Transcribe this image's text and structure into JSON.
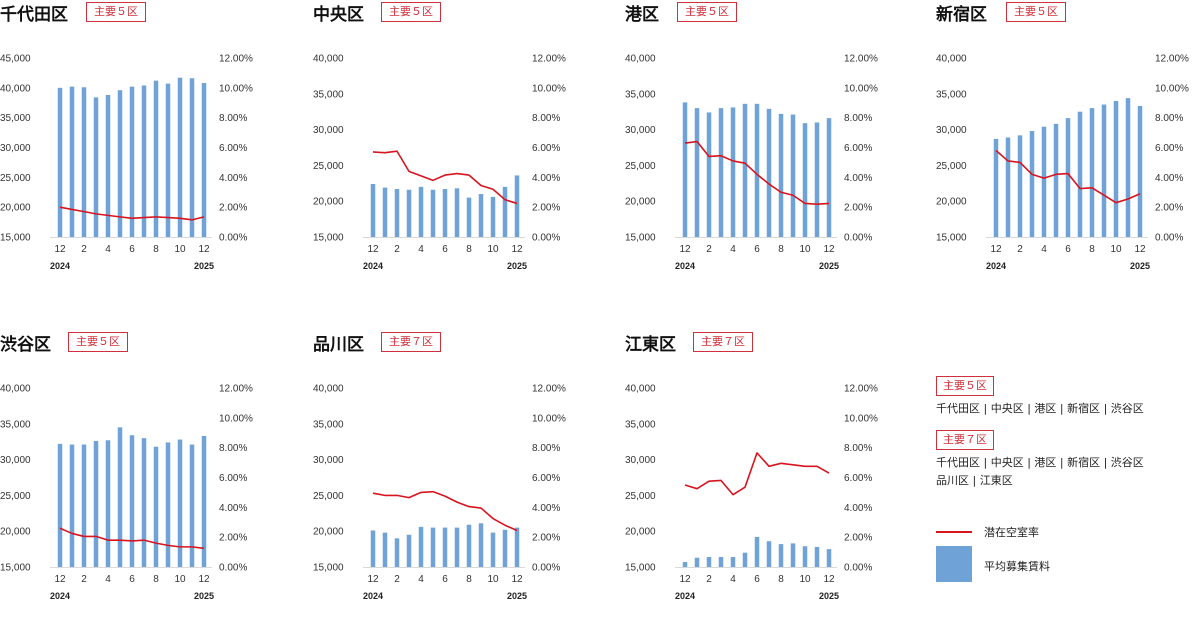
{
  "chart_data": [
    {
      "type": "bar",
      "title": "千代田区",
      "badge": "主要５区",
      "x": [
        "12",
        "1",
        "2",
        "3",
        "4",
        "5",
        "6",
        "7",
        "8",
        "9",
        "10",
        "11",
        "12"
      ],
      "xtick_labels": [
        "12",
        "2",
        "4",
        "6",
        "8",
        "10",
        "12"
      ],
      "year_start": "2024",
      "year_end": "2025",
      "ylim": [
        15000,
        45000
      ],
      "y_ticks": [
        "15,000",
        "20,000",
        "25,000",
        "30,000",
        "35,000",
        "40,000",
        "45,000"
      ],
      "y2lim": [
        0,
        12
      ],
      "y2_ticks": [
        "0.00%",
        "2.00%",
        "4.00%",
        "6.00%",
        "8.00%",
        "10.00%",
        "12.00%"
      ],
      "series": [
        {
          "name": "平均募集賃料",
          "kind": "bar",
          "values": [
            40000,
            40200,
            40100,
            38400,
            38800,
            39600,
            40200,
            40400,
            41200,
            40700,
            41700,
            41600,
            40800
          ]
        },
        {
          "name": "潜在空室率",
          "kind": "line",
          "values": [
            2.0,
            1.85,
            1.7,
            1.55,
            1.45,
            1.35,
            1.25,
            1.3,
            1.35,
            1.3,
            1.25,
            1.15,
            1.35
          ]
        }
      ]
    },
    {
      "type": "bar",
      "title": "中央区",
      "badge": "主要５区",
      "x": [
        "12",
        "1",
        "2",
        "3",
        "4",
        "5",
        "6",
        "7",
        "8",
        "9",
        "10",
        "11",
        "12"
      ],
      "xtick_labels": [
        "12",
        "2",
        "4",
        "6",
        "8",
        "10",
        "12"
      ],
      "year_start": "2024",
      "year_end": "2025",
      "ylim": [
        15000,
        40000
      ],
      "y_ticks": [
        "15,000",
        "20,000",
        "25,000",
        "30,000",
        "35,000",
        "40,000"
      ],
      "y2lim": [
        0,
        12
      ],
      "y2_ticks": [
        "0.00%",
        "2.00%",
        "4.00%",
        "6.00%",
        "8.00%",
        "10.00%",
        "12.00%"
      ],
      "series": [
        {
          "name": "平均募集賃料",
          "kind": "bar",
          "values": [
            22400,
            21900,
            21700,
            21600,
            22000,
            21600,
            21700,
            21800,
            20500,
            21000,
            20600,
            22000,
            23600
          ]
        },
        {
          "name": "潜在空室率",
          "kind": "line",
          "values": [
            5.7,
            5.65,
            5.75,
            4.4,
            4.1,
            3.8,
            4.15,
            4.25,
            4.15,
            3.45,
            3.2,
            2.5,
            2.25
          ]
        }
      ]
    },
    {
      "type": "bar",
      "title": "港区",
      "badge": "主要５区",
      "x": [
        "12",
        "1",
        "2",
        "3",
        "4",
        "5",
        "6",
        "7",
        "8",
        "9",
        "10",
        "11",
        "12"
      ],
      "xtick_labels": [
        "12",
        "2",
        "4",
        "6",
        "8",
        "10",
        "12"
      ],
      "year_start": "2024",
      "year_end": "2025",
      "ylim": [
        15000,
        40000
      ],
      "y_ticks": [
        "15,000",
        "20,000",
        "25,000",
        "30,000",
        "35,000",
        "40,000"
      ],
      "y2lim": [
        0,
        12
      ],
      "y2_ticks": [
        "0.00%",
        "2.00%",
        "4.00%",
        "6.00%",
        "8.00%",
        "10.00%",
        "12.00%"
      ],
      "series": [
        {
          "name": "平均募集賃料",
          "kind": "bar",
          "values": [
            33800,
            33000,
            32400,
            33000,
            33100,
            33600,
            33600,
            32900,
            32200,
            32100,
            30900,
            31000,
            31600
          ]
        },
        {
          "name": "潜在空室率",
          "kind": "line",
          "values": [
            6.3,
            6.4,
            5.4,
            5.45,
            5.1,
            4.95,
            4.2,
            3.55,
            3.0,
            2.8,
            2.25,
            2.2,
            2.25
          ]
        }
      ]
    },
    {
      "type": "bar",
      "title": "新宿区",
      "badge": "主要５区",
      "x": [
        "12",
        "1",
        "2",
        "3",
        "4",
        "5",
        "6",
        "7",
        "8",
        "9",
        "10",
        "11",
        "12"
      ],
      "xtick_labels": [
        "12",
        "2",
        "4",
        "6",
        "8",
        "10",
        "12"
      ],
      "year_start": "2024",
      "year_end": "2025",
      "ylim": [
        15000,
        40000
      ],
      "y_ticks": [
        "15,000",
        "20,000",
        "25,000",
        "30,000",
        "35,000",
        "40,000"
      ],
      "y2lim": [
        0,
        12
      ],
      "y2_ticks": [
        "0.00%",
        "2.00%",
        "4.00%",
        "6.00%",
        "8.00%",
        "10.00%",
        "12.00%"
      ],
      "series": [
        {
          "name": "平均募集賃料",
          "kind": "bar",
          "values": [
            28700,
            28900,
            29200,
            29800,
            30400,
            30800,
            31600,
            32500,
            33000,
            33500,
            34000,
            34400,
            33300
          ]
        },
        {
          "name": "潜在空室率",
          "kind": "line",
          "values": [
            5.8,
            5.1,
            5.0,
            4.2,
            3.95,
            4.2,
            4.25,
            3.25,
            3.3,
            2.8,
            2.3,
            2.55,
            2.9
          ]
        }
      ]
    },
    {
      "type": "bar",
      "title": "渋谷区",
      "badge": "主要５区",
      "x": [
        "12",
        "1",
        "2",
        "3",
        "4",
        "5",
        "6",
        "7",
        "8",
        "9",
        "10",
        "11",
        "12"
      ],
      "xtick_labels": [
        "12",
        "2",
        "4",
        "6",
        "8",
        "10",
        "12"
      ],
      "year_start": "2024",
      "year_end": "2025",
      "ylim": [
        15000,
        40000
      ],
      "y_ticks": [
        "15,000",
        "20,000",
        "25,000",
        "30,000",
        "35,000",
        "40,000"
      ],
      "y2lim": [
        0,
        12
      ],
      "y2_ticks": [
        "0.00%",
        "2.00%",
        "4.00%",
        "6.00%",
        "8.00%",
        "10.00%",
        "12.00%"
      ],
      "series": [
        {
          "name": "平均募集賃料",
          "kind": "bar",
          "values": [
            32200,
            32100,
            32100,
            32600,
            32700,
            34500,
            33400,
            33000,
            31800,
            32400,
            32800,
            32100,
            33300
          ]
        },
        {
          "name": "潜在空室率",
          "kind": "line",
          "values": [
            2.6,
            2.25,
            2.05,
            2.05,
            1.8,
            1.8,
            1.75,
            1.8,
            1.6,
            1.45,
            1.35,
            1.35,
            1.25
          ]
        }
      ]
    },
    {
      "type": "bar",
      "title": "品川区",
      "badge": "主要７区",
      "x": [
        "12",
        "1",
        "2",
        "3",
        "4",
        "5",
        "6",
        "7",
        "8",
        "9",
        "10",
        "11",
        "12"
      ],
      "xtick_labels": [
        "12",
        "2",
        "4",
        "6",
        "8",
        "10",
        "12"
      ],
      "year_start": "2024",
      "year_end": "2025",
      "ylim": [
        15000,
        40000
      ],
      "y_ticks": [
        "15,000",
        "20,000",
        "25,000",
        "30,000",
        "35,000",
        "40,000"
      ],
      "y2lim": [
        0,
        12
      ],
      "y2_ticks": [
        "0.00%",
        "2.00%",
        "4.00%",
        "6.00%",
        "8.00%",
        "10.00%",
        "12.00%"
      ],
      "series": [
        {
          "name": "平均募集賃料",
          "kind": "bar",
          "values": [
            20100,
            19800,
            19000,
            19500,
            20600,
            20500,
            20500,
            20500,
            20900,
            21100,
            19800,
            20200,
            20500
          ]
        },
        {
          "name": "潜在空室率",
          "kind": "line",
          "values": [
            4.95,
            4.8,
            4.8,
            4.65,
            5.0,
            5.05,
            4.75,
            4.35,
            4.05,
            3.95,
            3.25,
            2.8,
            2.45
          ]
        }
      ]
    },
    {
      "type": "bar",
      "title": "江東区",
      "badge": "主要７区",
      "x": [
        "12",
        "1",
        "2",
        "3",
        "4",
        "5",
        "6",
        "7",
        "8",
        "9",
        "10",
        "11",
        "12"
      ],
      "xtick_labels": [
        "12",
        "2",
        "4",
        "6",
        "8",
        "10",
        "12"
      ],
      "year_start": "2024",
      "year_end": "2025",
      "ylim": [
        15000,
        40000
      ],
      "y_ticks": [
        "15,000",
        "20,000",
        "25,000",
        "30,000",
        "35,000",
        "40,000"
      ],
      "y2lim": [
        0,
        12
      ],
      "y2_ticks": [
        "0.00%",
        "2.00%",
        "4.00%",
        "6.00%",
        "8.00%",
        "10.00%",
        "12.00%"
      ],
      "series": [
        {
          "name": "平均募集賃料",
          "kind": "bar",
          "values": [
            15700,
            16300,
            16400,
            16400,
            16400,
            17000,
            19200,
            18600,
            18200,
            18300,
            17900,
            17800,
            17500
          ]
        },
        {
          "name": "潜在空室率",
          "kind": "line",
          "values": [
            5.5,
            5.25,
            5.75,
            5.8,
            4.85,
            5.35,
            7.65,
            6.75,
            6.95,
            6.85,
            6.75,
            6.75,
            6.3
          ]
        }
      ]
    }
  ],
  "legend": {
    "group5": {
      "badge": "主要５区",
      "members": "千代田区 | 中央区 | 港区 | 新宿区 | 渋谷区"
    },
    "group7": {
      "badge": "主要７区",
      "members_line1": "千代田区 | 中央区 | 港区 | 新宿区 | 渋谷区",
      "members_line2": "品川区 | 江東区"
    },
    "line_label": "潜在空室率",
    "bar_label": "平均募集賃料"
  },
  "colors": {
    "bar": "#6fa3d8",
    "line": "#d7141f",
    "accent": "#d0303b"
  }
}
